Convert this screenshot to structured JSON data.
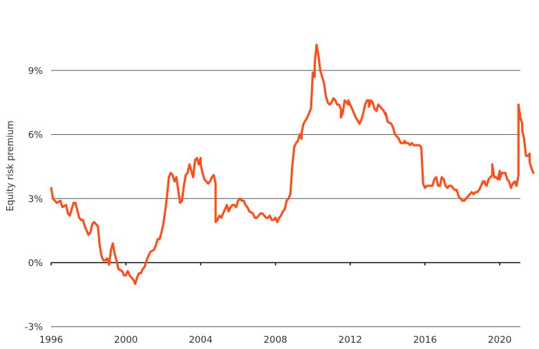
{
  "chart_data": {
    "type": "line",
    "title": "",
    "xlabel": "",
    "ylabel": "Equity risk premium",
    "x_tick_labels": [
      "1996",
      "2000",
      "2004",
      "2008",
      "2012",
      "2016",
      "2020"
    ],
    "y_tick_labels": [
      "-3%",
      "0%",
      "3%",
      "6%",
      "9%"
    ],
    "y_ticks": [
      -3,
      0,
      3,
      6,
      9
    ],
    "xlim": [
      1996,
      2021.1
    ],
    "ylim": [
      -3,
      11
    ],
    "grid": "horizontal",
    "legend": "none",
    "series": [
      {
        "name": "Equity risk premium",
        "color": "#FF4E1A",
        "points": [
          [
            1996.0,
            3.5
          ],
          [
            1996.1,
            3.0
          ],
          [
            1996.3,
            2.8
          ],
          [
            1996.5,
            2.9
          ],
          [
            1996.6,
            2.6
          ],
          [
            1996.8,
            2.7
          ],
          [
            1996.9,
            2.3
          ],
          [
            1997.0,
            2.2
          ],
          [
            1997.2,
            2.8
          ],
          [
            1997.3,
            2.8
          ],
          [
            1997.5,
            2.1
          ],
          [
            1997.6,
            2.0
          ],
          [
            1997.7,
            2.0
          ],
          [
            1997.8,
            1.7
          ],
          [
            1998.0,
            1.3
          ],
          [
            1998.1,
            1.4
          ],
          [
            1998.2,
            1.8
          ],
          [
            1998.3,
            1.9
          ],
          [
            1998.4,
            1.8
          ],
          [
            1998.5,
            1.7
          ],
          [
            1998.6,
            0.8
          ],
          [
            1998.7,
            0.3
          ],
          [
            1998.8,
            0.1
          ],
          [
            1998.9,
            0.1
          ],
          [
            1999.0,
            0.2
          ],
          [
            1999.1,
            -0.1
          ],
          [
            1999.2,
            0.6
          ],
          [
            1999.3,
            0.9
          ],
          [
            1999.4,
            0.4
          ],
          [
            1999.5,
            0.1
          ],
          [
            1999.6,
            -0.3
          ],
          [
            1999.8,
            -0.4
          ],
          [
            1999.9,
            -0.6
          ],
          [
            2000.0,
            -0.6
          ],
          [
            2000.1,
            -0.4
          ],
          [
            2000.2,
            -0.6
          ],
          [
            2000.4,
            -0.8
          ],
          [
            2000.5,
            -1.0
          ],
          [
            2000.6,
            -0.7
          ],
          [
            2000.7,
            -0.5
          ],
          [
            2000.8,
            -0.5
          ],
          [
            2000.9,
            -0.3
          ],
          [
            2001.0,
            -0.2
          ],
          [
            2001.1,
            0.1
          ],
          [
            2001.2,
            0.3
          ],
          [
            2001.3,
            0.5
          ],
          [
            2001.5,
            0.6
          ],
          [
            2001.6,
            0.8
          ],
          [
            2001.7,
            1.1
          ],
          [
            2001.8,
            1.1
          ],
          [
            2001.9,
            1.4
          ],
          [
            2002.0,
            1.8
          ],
          [
            2002.1,
            2.4
          ],
          [
            2002.2,
            3.1
          ],
          [
            2002.3,
            4.0
          ],
          [
            2002.4,
            4.2
          ],
          [
            2002.5,
            4.1
          ],
          [
            2002.6,
            3.8
          ],
          [
            2002.7,
            4.0
          ],
          [
            2002.8,
            3.4
          ],
          [
            2002.9,
            2.8
          ],
          [
            2003.0,
            2.9
          ],
          [
            2003.1,
            3.6
          ],
          [
            2003.2,
            4.1
          ],
          [
            2003.3,
            4.2
          ],
          [
            2003.4,
            4.6
          ],
          [
            2003.5,
            4.3
          ],
          [
            2003.6,
            4.0
          ],
          [
            2003.7,
            4.8
          ],
          [
            2003.8,
            4.9
          ],
          [
            2003.9,
            4.6
          ],
          [
            2004.0,
            4.9
          ],
          [
            2004.0,
            4.6
          ],
          [
            2004.1,
            4.2
          ],
          [
            2004.2,
            3.9
          ],
          [
            2004.4,
            3.7
          ],
          [
            2004.5,
            3.8
          ],
          [
            2004.6,
            4.0
          ],
          [
            2004.7,
            4.1
          ],
          [
            2004.8,
            3.7
          ],
          [
            2004.8,
            1.9
          ],
          [
            2004.9,
            2.0
          ],
          [
            2005.0,
            2.2
          ],
          [
            2005.1,
            2.1
          ],
          [
            2005.2,
            2.3
          ],
          [
            2005.3,
            2.5
          ],
          [
            2005.4,
            2.7
          ],
          [
            2005.5,
            2.4
          ],
          [
            2005.6,
            2.6
          ],
          [
            2005.7,
            2.7
          ],
          [
            2005.8,
            2.7
          ],
          [
            2005.9,
            2.6
          ],
          [
            2006.0,
            2.9
          ],
          [
            2006.1,
            3.0
          ],
          [
            2006.2,
            2.9
          ],
          [
            2006.3,
            2.9
          ],
          [
            2006.4,
            2.7
          ],
          [
            2006.5,
            2.6
          ],
          [
            2006.6,
            2.4
          ],
          [
            2006.8,
            2.3
          ],
          [
            2006.9,
            2.1
          ],
          [
            2007.0,
            2.1
          ],
          [
            2007.1,
            2.2
          ],
          [
            2007.2,
            2.3
          ],
          [
            2007.3,
            2.3
          ],
          [
            2007.4,
            2.2
          ],
          [
            2007.5,
            2.1
          ],
          [
            2007.6,
            2.1
          ],
          [
            2007.7,
            2.2
          ],
          [
            2007.8,
            2.0
          ],
          [
            2007.9,
            2.0
          ],
          [
            2008.0,
            2.1
          ],
          [
            2008.1,
            1.9
          ],
          [
            2008.2,
            2.1
          ],
          [
            2008.3,
            2.2
          ],
          [
            2008.4,
            2.4
          ],
          [
            2008.5,
            2.5
          ],
          [
            2008.6,
            2.9
          ],
          [
            2008.7,
            3.0
          ],
          [
            2008.8,
            3.2
          ],
          [
            2008.9,
            4.5
          ],
          [
            2009.0,
            5.4
          ],
          [
            2009.1,
            5.6
          ],
          [
            2009.2,
            5.7
          ],
          [
            2009.3,
            6.0
          ],
          [
            2009.4,
            5.8
          ],
          [
            2009.4,
            6.1
          ],
          [
            2009.5,
            6.5
          ],
          [
            2009.7,
            6.8
          ],
          [
            2009.8,
            7.0
          ],
          [
            2009.9,
            7.2
          ],
          [
            2010.0,
            8.9
          ],
          [
            2010.1,
            8.7
          ],
          [
            2010.1,
            9.3
          ],
          [
            2010.2,
            10.2
          ],
          [
            2010.3,
            9.7
          ],
          [
            2010.4,
            9.0
          ],
          [
            2010.5,
            8.7
          ],
          [
            2010.6,
            8.4
          ],
          [
            2010.7,
            7.8
          ],
          [
            2010.8,
            7.5
          ],
          [
            2010.9,
            7.4
          ],
          [
            2011.0,
            7.5
          ],
          [
            2011.1,
            7.7
          ],
          [
            2011.2,
            7.6
          ],
          [
            2011.3,
            7.4
          ],
          [
            2011.4,
            7.4
          ],
          [
            2011.5,
            7.2
          ],
          [
            2011.5,
            6.8
          ],
          [
            2011.6,
            7.0
          ],
          [
            2011.7,
            7.6
          ],
          [
            2011.8,
            7.5
          ],
          [
            2011.9,
            7.4
          ],
          [
            2011.9,
            7.6
          ],
          [
            2012.0,
            7.4
          ],
          [
            2012.1,
            7.2
          ],
          [
            2012.2,
            7.0
          ],
          [
            2012.3,
            6.8
          ],
          [
            2012.5,
            6.5
          ],
          [
            2012.5,
            6.5
          ],
          [
            2012.6,
            6.7
          ],
          [
            2012.7,
            7.0
          ],
          [
            2012.8,
            7.4
          ],
          [
            2012.9,
            7.6
          ],
          [
            2013.0,
            7.6
          ],
          [
            2013.0,
            7.3
          ],
          [
            2013.1,
            7.6
          ],
          [
            2013.2,
            7.5
          ],
          [
            2013.3,
            7.2
          ],
          [
            2013.4,
            7.1
          ],
          [
            2013.5,
            7.4
          ],
          [
            2013.6,
            7.3
          ],
          [
            2013.7,
            7.2
          ],
          [
            2013.8,
            7.1
          ],
          [
            2013.9,
            6.9
          ],
          [
            2013.9,
            7.0
          ],
          [
            2014.0,
            6.6
          ],
          [
            2014.2,
            6.5
          ],
          [
            2014.3,
            6.3
          ],
          [
            2014.4,
            6.0
          ],
          [
            2014.5,
            5.9
          ],
          [
            2014.6,
            5.8
          ],
          [
            2014.7,
            5.6
          ],
          [
            2014.8,
            5.6
          ],
          [
            2014.9,
            5.6
          ],
          [
            2014.9,
            5.7
          ],
          [
            2015.0,
            5.6
          ],
          [
            2015.1,
            5.6
          ],
          [
            2015.2,
            5.5
          ],
          [
            2015.3,
            5.6
          ],
          [
            2015.4,
            5.5
          ],
          [
            2015.5,
            5.5
          ],
          [
            2015.7,
            5.5
          ],
          [
            2015.8,
            5.4
          ],
          [
            2015.9,
            3.7
          ],
          [
            2016.0,
            3.5
          ],
          [
            2016.1,
            3.6
          ],
          [
            2016.2,
            3.6
          ],
          [
            2016.3,
            3.6
          ],
          [
            2016.4,
            3.6
          ],
          [
            2016.5,
            3.9
          ],
          [
            2016.6,
            4.0
          ],
          [
            2016.7,
            3.6
          ],
          [
            2016.8,
            3.6
          ],
          [
            2016.9,
            4.0
          ],
          [
            2017.0,
            3.9
          ],
          [
            2017.1,
            3.6
          ],
          [
            2017.2,
            3.5
          ],
          [
            2017.3,
            3.6
          ],
          [
            2017.4,
            3.6
          ],
          [
            2017.6,
            3.4
          ],
          [
            2017.7,
            3.4
          ],
          [
            2017.8,
            3.1
          ],
          [
            2017.9,
            3.0
          ],
          [
            2018.0,
            2.9
          ],
          [
            2018.1,
            2.9
          ],
          [
            2018.3,
            3.1
          ],
          [
            2018.4,
            3.2
          ],
          [
            2018.5,
            3.3
          ],
          [
            2018.6,
            3.2
          ],
          [
            2018.7,
            3.3
          ],
          [
            2018.8,
            3.3
          ],
          [
            2018.9,
            3.4
          ],
          [
            2019.1,
            3.8
          ],
          [
            2019.2,
            3.8
          ],
          [
            2019.2,
            3.7
          ],
          [
            2019.3,
            3.6
          ],
          [
            2019.4,
            3.9
          ],
          [
            2019.6,
            4.1
          ],
          [
            2019.6,
            4.6
          ],
          [
            2019.7,
            4.0
          ],
          [
            2019.8,
            4.0
          ],
          [
            2019.9,
            3.9
          ],
          [
            2020.0,
            4.3
          ],
          [
            2020.0,
            3.9
          ],
          [
            2020.1,
            4.2
          ],
          [
            2020.3,
            4.2
          ],
          [
            2020.4,
            3.9
          ],
          [
            2020.5,
            3.8
          ],
          [
            2020.6,
            3.5
          ],
          [
            2020.7,
            3.7
          ],
          [
            2020.7,
            3.7
          ],
          [
            2020.8,
            3.8
          ],
          [
            2020.9,
            3.6
          ],
          [
            2021.0,
            4.1
          ],
          [
            2021.0,
            7.4
          ],
          [
            2021.1,
            6.8
          ],
          [
            2021.2,
            6.5
          ],
          [
            2021.2,
            6.2
          ],
          [
            2021.3,
            5.8
          ],
          [
            2021.4,
            5.0
          ],
          [
            2021.5,
            5.0
          ],
          [
            2021.6,
            5.1
          ],
          [
            2021.6,
            4.7
          ],
          [
            2021.7,
            4.4
          ],
          [
            2021.8,
            4.2
          ]
        ]
      }
    ]
  },
  "axes": {
    "ylabel": "Equity risk premium",
    "y_ticks": [
      {
        "label": "9%",
        "value": 9
      },
      {
        "label": "6%",
        "value": 6
      },
      {
        "label": "3%",
        "value": 3
      },
      {
        "label": "0%",
        "value": 0
      },
      {
        "label": "-3%",
        "value": -3
      }
    ],
    "x_ticks": [
      {
        "label": "1996",
        "value": 1996
      },
      {
        "label": "2000",
        "value": 2000
      },
      {
        "label": "2004",
        "value": 2004
      },
      {
        "label": "2008",
        "value": 2008
      },
      {
        "label": "2012",
        "value": 2012
      },
      {
        "label": "2016",
        "value": 2016
      },
      {
        "label": "2020",
        "value": 2020
      }
    ]
  },
  "colors": {
    "line": "#FF4E1A",
    "grid": "#555555",
    "zero_axis": "#111111",
    "text": "#333333"
  }
}
